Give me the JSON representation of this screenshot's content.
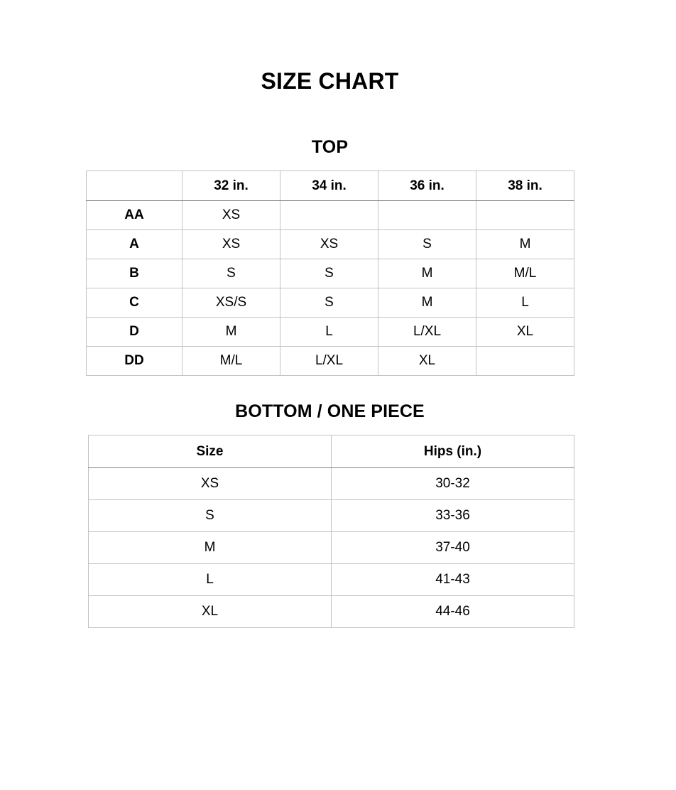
{
  "title": "SIZE CHART",
  "top_section": {
    "heading": "TOP",
    "columns": [
      "",
      "32 in.",
      "34 in.",
      "36 in.",
      "38 in."
    ],
    "rows": [
      {
        "label": "AA",
        "values": [
          "XS",
          "",
          "",
          ""
        ]
      },
      {
        "label": "A",
        "values": [
          "XS",
          "XS",
          "S",
          "M"
        ]
      },
      {
        "label": "B",
        "values": [
          "S",
          "S",
          "M",
          "M/L"
        ]
      },
      {
        "label": "C",
        "values": [
          "XS/S",
          "S",
          "M",
          "L"
        ]
      },
      {
        "label": "D",
        "values": [
          "M",
          "L",
          "L/XL",
          "XL"
        ]
      },
      {
        "label": "DD",
        "values": [
          "M/L",
          "L/XL",
          "XL",
          ""
        ]
      }
    ]
  },
  "bottom_section": {
    "heading": "BOTTOM / ONE PIECE",
    "columns": [
      "Size",
      "Hips (in.)"
    ],
    "rows": [
      {
        "size": "XS",
        "hips": "30-32"
      },
      {
        "size": "S",
        "hips": "33-36"
      },
      {
        "size": "M",
        "hips": "37-40"
      },
      {
        "size": "L",
        "hips": "41-43"
      },
      {
        "size": "XL",
        "hips": "44-46"
      }
    ]
  },
  "colors": {
    "text": "#000000",
    "background": "#ffffff",
    "border_light": "#c2c2c2",
    "border_dark": "#7f7f7f"
  }
}
